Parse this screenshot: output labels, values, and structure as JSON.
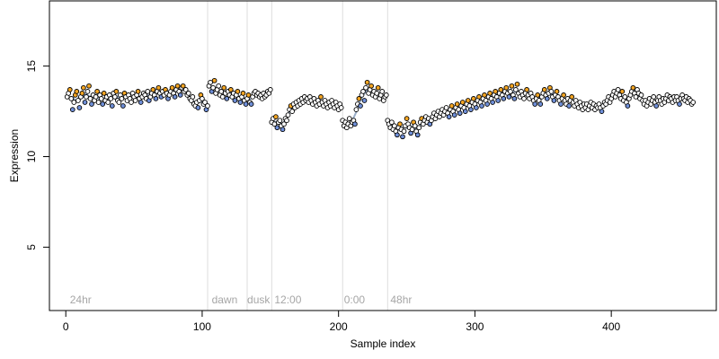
{
  "chart_data": {
    "type": "scatter",
    "title": "",
    "xlabel": "Sample index",
    "ylabel": "Expression",
    "xlim": [
      -12,
      477
    ],
    "ylim": [
      1.5,
      18.6
    ],
    "x_ticks": [
      0,
      100,
      200,
      300,
      400
    ],
    "y_ticks": [
      5,
      10,
      15
    ],
    "grid": false,
    "legend": "none",
    "colors": {
      "point_stroke": "#000000",
      "point_fill_high": "#f5a623",
      "point_fill_low": "#6f8fd8",
      "point_fill_mid": "#ffffff",
      "trend_line": "#9aaec8",
      "smooth_line": "#e8a766",
      "vline": "#dddddd",
      "annotation": "#a6a6a6"
    },
    "vlines": [
      104,
      133,
      151,
      203,
      236
    ],
    "annotations": [
      {
        "x": 3,
        "label": "24hr"
      },
      {
        "x": 107,
        "label": "dawn"
      },
      {
        "x": 133,
        "label": "dusk"
      },
      {
        "x": 153,
        "label": "12:00"
      },
      {
        "x": 204,
        "label": "0:00"
      },
      {
        "x": 238,
        "label": "48hr"
      }
    ],
    "segments": [
      {
        "x_start": 1,
        "x_end": 104,
        "y": [
          13.3,
          13.5,
          13.7,
          13.2,
          12.6,
          13.0,
          13.4,
          13.6,
          13.1,
          12.7,
          13.3,
          13.5,
          13.8,
          13.0,
          13.3,
          13.6,
          13.9,
          13.2,
          12.9,
          13.4,
          13.1,
          13.3,
          13.6,
          13.0,
          13.4,
          13.2,
          12.9,
          13.5,
          13.1,
          13.3,
          13.0,
          13.4,
          13.2,
          12.8,
          13.5,
          13.3,
          13.6,
          13.1,
          13.0,
          13.4,
          13.2,
          12.8,
          13.5,
          13.3,
          13.1,
          13.4,
          13.2,
          13.0,
          13.5,
          13.3,
          13.1,
          13.4,
          13.6,
          13.2,
          13.0,
          13.3,
          13.5,
          13.4,
          13.2,
          13.6,
          13.1,
          13.3,
          13.5,
          13.7,
          13.4,
          13.2,
          13.6,
          13.8,
          13.5,
          13.3,
          13.6,
          13.4,
          13.7,
          13.5,
          13.2,
          13.4,
          13.6,
          13.8,
          13.5,
          13.3,
          13.7,
          13.9,
          13.6,
          13.4,
          13.8,
          13.9,
          13.6,
          13.7,
          13.4,
          13.5,
          13.2,
          13.1,
          13.3,
          12.9,
          12.8,
          13.0,
          12.7,
          13.1,
          13.4,
          13.2,
          12.9,
          13.0,
          12.6,
          12.8
        ]
      },
      {
        "x_start": 105,
        "x_end": 150,
        "y": [
          13.9,
          14.1,
          13.6,
          13.8,
          14.2,
          13.5,
          13.7,
          13.9,
          13.4,
          13.6,
          13.3,
          13.8,
          13.5,
          13.2,
          13.6,
          13.4,
          13.7,
          13.3,
          13.5,
          13.1,
          13.4,
          13.6,
          13.2,
          13.0,
          13.3,
          13.5,
          13.1,
          12.9,
          13.2,
          13.4,
          13.0,
          12.9,
          13.3,
          13.5,
          13.6,
          13.4,
          13.5,
          13.3,
          13.4,
          13.2,
          13.5,
          13.3,
          13.4,
          13.6,
          13.5,
          13.7
        ]
      },
      {
        "x_start": 151,
        "x_end": 202,
        "y": [
          11.9,
          12.1,
          11.8,
          12.2,
          11.6,
          11.9,
          12.0,
          11.7,
          11.5,
          11.8,
          12.1,
          12.0,
          12.3,
          12.6,
          12.8,
          12.5,
          12.9,
          12.7,
          13.0,
          12.8,
          13.1,
          12.9,
          13.2,
          13.0,
          13.3,
          13.1,
          13.2,
          13.0,
          13.3,
          13.1,
          12.9,
          13.2,
          13.0,
          12.8,
          13.1,
          12.9,
          13.3,
          13.0,
          12.8,
          13.1,
          12.9,
          12.7,
          13.0,
          12.8,
          13.1,
          12.9,
          12.7,
          13.0,
          12.8,
          12.6,
          12.9,
          12.7
        ]
      },
      {
        "x_start": 203,
        "x_end": 235,
        "y": [
          12.0,
          11.7,
          11.9,
          11.6,
          11.8,
          12.1,
          11.7,
          11.9,
          12.0,
          11.8,
          12.6,
          12.9,
          13.2,
          12.8,
          13.4,
          13.6,
          13.1,
          13.8,
          14.1,
          13.5,
          13.7,
          13.9,
          13.4,
          13.6,
          13.3,
          13.5,
          13.8,
          13.2,
          13.4,
          13.6,
          13.1,
          13.3,
          13.4
        ]
      },
      {
        "x_start": 236,
        "x_end": 460,
        "y": [
          12.0,
          11.8,
          11.6,
          11.9,
          11.5,
          11.7,
          11.4,
          11.2,
          11.6,
          11.8,
          11.5,
          11.1,
          11.4,
          11.7,
          12.1,
          11.8,
          11.6,
          11.3,
          11.5,
          11.9,
          11.7,
          11.4,
          11.2,
          11.6,
          11.9,
          12.1,
          11.8,
          12.0,
          12.2,
          11.9,
          12.1,
          11.8,
          12.0,
          12.2,
          12.4,
          12.1,
          12.3,
          12.5,
          12.2,
          12.4,
          12.6,
          12.3,
          12.5,
          12.7,
          12.4,
          12.2,
          12.6,
          12.8,
          12.5,
          12.3,
          12.7,
          12.9,
          12.6,
          12.4,
          12.8,
          13.0,
          12.7,
          12.5,
          12.9,
          13.1,
          12.8,
          12.6,
          13.0,
          13.2,
          12.9,
          12.7,
          13.1,
          13.3,
          13.0,
          12.8,
          13.2,
          13.4,
          13.1,
          12.9,
          13.3,
          13.5,
          13.2,
          13.0,
          13.4,
          13.6,
          13.3,
          13.1,
          13.5,
          13.7,
          13.4,
          13.2,
          13.6,
          13.8,
          13.5,
          13.3,
          13.6,
          13.9,
          13.4,
          13.2,
          13.7,
          14.0,
          13.5,
          13.3,
          13.6,
          13.4,
          13.2,
          13.5,
          13.7,
          13.4,
          13.2,
          13.5,
          13.3,
          13.1,
          12.9,
          13.2,
          13.4,
          13.1,
          12.9,
          13.3,
          13.5,
          13.7,
          13.4,
          13.2,
          13.5,
          13.8,
          13.6,
          13.3,
          13.1,
          13.4,
          13.6,
          13.3,
          13.1,
          12.9,
          13.2,
          13.4,
          13.1,
          12.9,
          13.2,
          12.8,
          13.1,
          13.3,
          13.0,
          12.8,
          13.1,
          12.9,
          12.7,
          13.0,
          12.8,
          12.6,
          12.9,
          12.7,
          12.9,
          12.6,
          12.8,
          13.0,
          12.7,
          12.9,
          12.6,
          12.8,
          12.7,
          12.9,
          12.7,
          12.5,
          12.8,
          13.0,
          12.9,
          13.1,
          13.3,
          13.0,
          13.2,
          13.4,
          13.6,
          13.3,
          13.5,
          13.7,
          13.4,
          13.2,
          13.6,
          13.1,
          13.3,
          13.0,
          12.8,
          13.2,
          13.4,
          13.6,
          13.8,
          13.5,
          13.3,
          13.7,
          13.5,
          13.2,
          13.4,
          13.1,
          12.9,
          13.1,
          12.8,
          13.0,
          13.2,
          12.9,
          13.1,
          13.3,
          13.0,
          12.8,
          13.1,
          13.3,
          13.1,
          12.9,
          13.2,
          13.0,
          13.2,
          13.4,
          13.1,
          13.3,
          13.2,
          13.0,
          13.3,
          13.1,
          13.3,
          13.1,
          12.9,
          13.2,
          13.4,
          13.2,
          13.1,
          13.3,
          13.0,
          13.2,
          13.1,
          12.9,
          13.0
        ]
      }
    ]
  }
}
